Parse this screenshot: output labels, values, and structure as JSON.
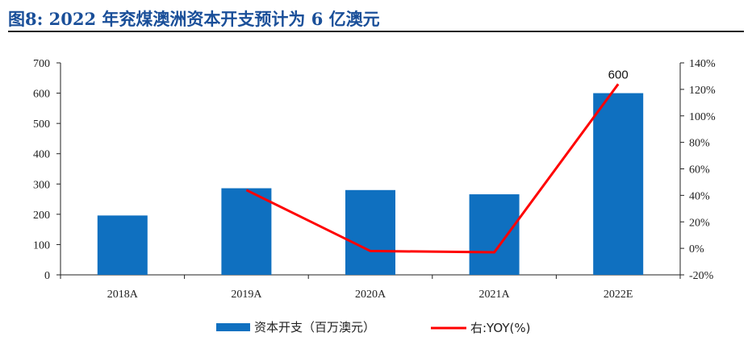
{
  "figure": {
    "title": "图8:  2022 年兖煤澳洲资本开支预计为 6 亿澳元"
  },
  "colors": {
    "bar": "#0f70c0",
    "line": "#ff0000",
    "title": "#1a4f99",
    "axis": "#222222"
  },
  "chart_data": {
    "type": "bar",
    "categories": [
      "2018A",
      "2019A",
      "2020A",
      "2021A",
      "2022E"
    ],
    "series": [
      {
        "name": "资本开支（百万澳元）",
        "type": "bar",
        "axis": "left",
        "values": [
          196,
          286,
          280,
          266,
          600
        ]
      },
      {
        "name": "右:YOY(%)",
        "type": "line",
        "axis": "right",
        "values": [
          null,
          44,
          -2,
          -3,
          124
        ]
      }
    ],
    "ylim": [
      0,
      700
    ],
    "yticks": [
      "0",
      "100",
      "200",
      "300",
      "400",
      "500",
      "600",
      "700"
    ],
    "y2lim": [
      -20,
      140
    ],
    "y2ticks": [
      "-20%",
      "0%",
      "20%",
      "40%",
      "60%",
      "80%",
      "100%",
      "120%",
      "140%"
    ],
    "data_labels": [
      {
        "category": "2022E",
        "text": "600"
      }
    ],
    "legend": "bottom",
    "grid": false
  }
}
